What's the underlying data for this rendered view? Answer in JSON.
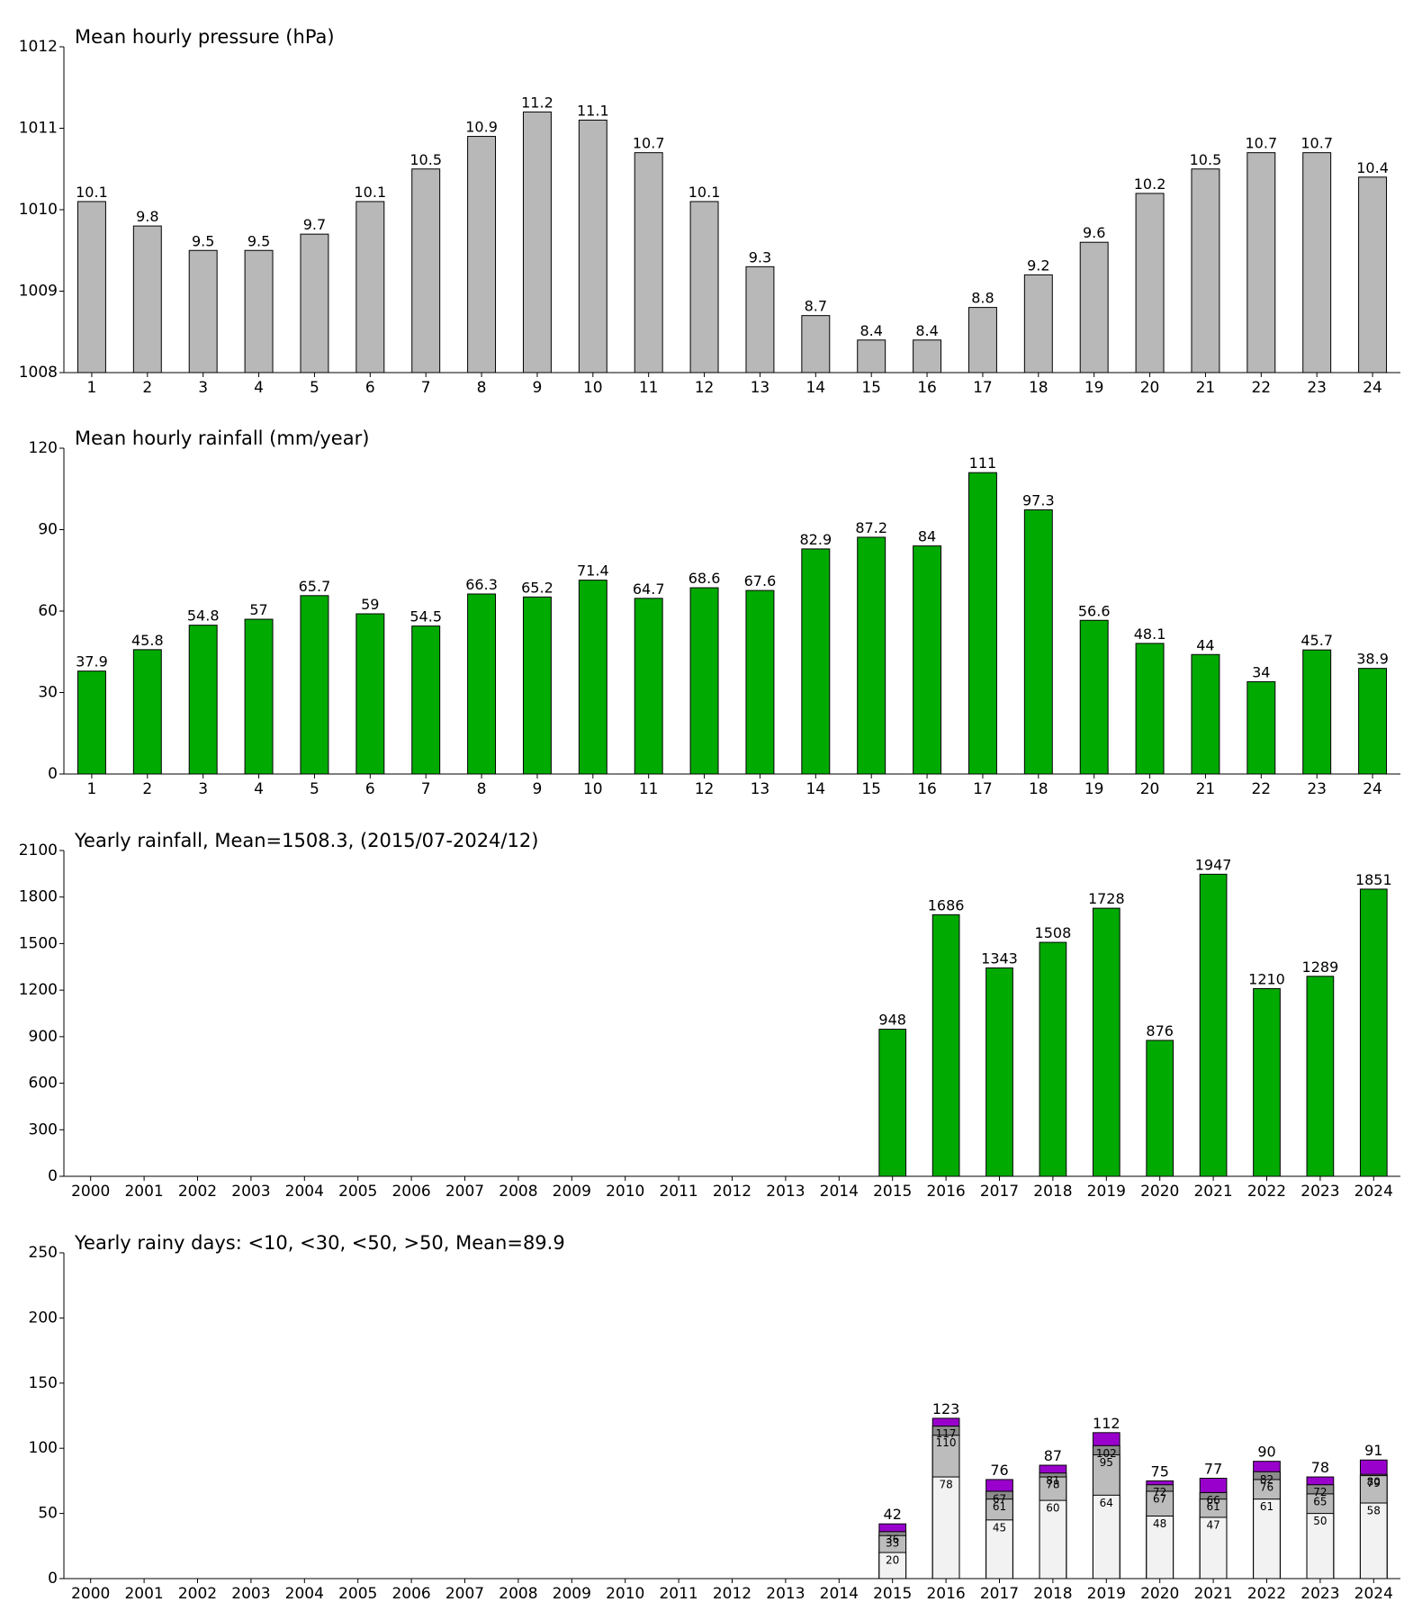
{
  "chart_data": [
    {
      "type": "bar",
      "title": "Mean hourly pressure (hPa)",
      "color": "#b8b8b8",
      "categories": [
        "1",
        "2",
        "3",
        "4",
        "5",
        "6",
        "7",
        "8",
        "9",
        "10",
        "11",
        "12",
        "13",
        "14",
        "15",
        "16",
        "17",
        "18",
        "19",
        "20",
        "21",
        "22",
        "23",
        "24"
      ],
      "values": [
        1010.1,
        1009.8,
        1009.5,
        1009.5,
        1009.7,
        1010.1,
        1010.5,
        1010.9,
        1011.2,
        1011.1,
        1010.7,
        1010.1,
        1009.3,
        1008.7,
        1008.4,
        1008.4,
        1008.8,
        1009.2,
        1009.6,
        1010.2,
        1010.5,
        1010.7,
        1010.7,
        1010.4
      ],
      "value_labels": [
        "10.1",
        "9.8",
        "9.5",
        "9.5",
        "9.7",
        "10.1",
        "10.5",
        "10.9",
        "11.2",
        "11.1",
        "10.7",
        "10.1",
        "9.3",
        "8.7",
        "8.4",
        "8.4",
        "8.8",
        "9.2",
        "9.6",
        "10.2",
        "10.5",
        "10.7",
        "10.7",
        "10.4"
      ],
      "ylim": [
        1008,
        1012
      ],
      "yticks": [
        1008,
        1009,
        1010,
        1011,
        1012
      ]
    },
    {
      "type": "bar",
      "title": "Mean hourly rainfall (mm/year)",
      "color": "#00aa00",
      "categories": [
        "1",
        "2",
        "3",
        "4",
        "5",
        "6",
        "7",
        "8",
        "9",
        "10",
        "11",
        "12",
        "13",
        "14",
        "15",
        "16",
        "17",
        "18",
        "19",
        "20",
        "21",
        "22",
        "23",
        "24"
      ],
      "values": [
        37.9,
        45.8,
        54.8,
        57,
        65.7,
        59,
        54.5,
        66.3,
        65.2,
        71.4,
        64.7,
        68.6,
        67.6,
        82.9,
        87.2,
        84,
        111,
        97.3,
        56.6,
        48.1,
        44,
        34,
        45.7,
        38.9
      ],
      "ylim": [
        0,
        120
      ],
      "yticks": [
        0,
        30,
        60,
        90,
        120
      ]
    },
    {
      "type": "bar",
      "title": "Yearly rainfall, Mean=1508.3, (2015/07-2024/12)",
      "color": "#00aa00",
      "categories": [
        "2000",
        "2001",
        "2002",
        "2003",
        "2004",
        "2005",
        "2006",
        "2007",
        "2008",
        "2009",
        "2010",
        "2011",
        "2012",
        "2013",
        "2014",
        "2015",
        "2016",
        "2017",
        "2018",
        "2019",
        "2020",
        "2021",
        "2022",
        "2023",
        "2024"
      ],
      "values": [
        null,
        null,
        null,
        null,
        null,
        null,
        null,
        null,
        null,
        null,
        null,
        null,
        null,
        null,
        null,
        948,
        1686,
        1343,
        1508,
        1728,
        876,
        1947,
        1210,
        1289,
        1851
      ],
      "ylim": [
        0,
        2100
      ],
      "yticks": [
        0,
        300,
        600,
        900,
        1200,
        1500,
        1800,
        2100
      ]
    },
    {
      "type": "overlap_bar",
      "title": "Yearly rainy days: <10, <30, <50, >50, Mean=89.9",
      "categories": [
        "2000",
        "2001",
        "2002",
        "2003",
        "2004",
        "2005",
        "2006",
        "2007",
        "2008",
        "2009",
        "2010",
        "2011",
        "2012",
        "2013",
        "2014",
        "2015",
        "2016",
        "2017",
        "2018",
        "2019",
        "2020",
        "2021",
        "2022",
        "2023",
        "2024"
      ],
      "series": [
        {
          "color": "#9900cc",
          "values": [
            null,
            null,
            null,
            null,
            null,
            null,
            null,
            null,
            null,
            null,
            null,
            null,
            null,
            null,
            null,
            42,
            123,
            76,
            87,
            112,
            75,
            77,
            90,
            78,
            91
          ]
        },
        {
          "color": "#8c8c8c",
          "values": [
            null,
            null,
            null,
            null,
            null,
            null,
            null,
            null,
            null,
            null,
            null,
            null,
            null,
            null,
            null,
            36,
            117,
            67,
            81,
            102,
            72,
            66,
            82,
            72,
            80
          ]
        },
        {
          "color": "#bcbcbc",
          "values": [
            null,
            null,
            null,
            null,
            null,
            null,
            null,
            null,
            null,
            null,
            null,
            null,
            null,
            null,
            null,
            33,
            110,
            61,
            78,
            95,
            67,
            61,
            76,
            65,
            79
          ]
        },
        {
          "color": "#f2f2f2",
          "values": [
            null,
            null,
            null,
            null,
            null,
            null,
            null,
            null,
            null,
            null,
            null,
            null,
            null,
            null,
            null,
            20,
            78,
            45,
            60,
            64,
            48,
            47,
            61,
            50,
            58
          ]
        }
      ],
      "ylim": [
        0,
        250
      ],
      "yticks": [
        0,
        50,
        100,
        150,
        200,
        250
      ]
    }
  ]
}
